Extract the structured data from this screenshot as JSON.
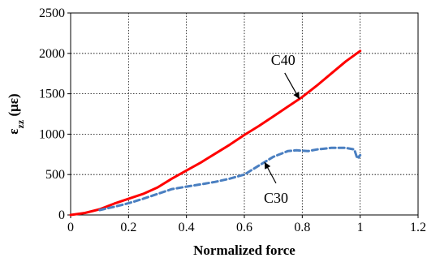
{
  "chart_data": {
    "type": "line",
    "title": "",
    "xlabel": "Normalized force",
    "ylabel_main": "ε",
    "ylabel_sub": "zz",
    "ylabel_unit": " (με)",
    "xlim": [
      0,
      1.2
    ],
    "ylim": [
      0,
      2500
    ],
    "xticks": [
      "0",
      "0.2",
      "0.4",
      "0.6",
      "0.8",
      "1",
      "1.2"
    ],
    "yticks": [
      "0",
      "500",
      "1000",
      "1500",
      "2000",
      "2500"
    ],
    "grid": true,
    "series": [
      {
        "name": "C40",
        "color": "#ff0000",
        "style": "solid",
        "x": [
          0,
          0.05,
          0.1,
          0.15,
          0.2,
          0.25,
          0.3,
          0.35,
          0.4,
          0.45,
          0.5,
          0.55,
          0.6,
          0.65,
          0.7,
          0.75,
          0.8,
          0.85,
          0.9,
          0.95,
          1.0
        ],
        "y": [
          0,
          25,
          70,
          140,
          200,
          260,
          340,
          450,
          550,
          650,
          760,
          870,
          990,
          1100,
          1220,
          1340,
          1460,
          1600,
          1750,
          1900,
          2030
        ]
      },
      {
        "name": "C30",
        "color": "#4a7fc1",
        "style": "dashed",
        "x": [
          0.1,
          0.15,
          0.2,
          0.25,
          0.3,
          0.35,
          0.4,
          0.45,
          0.5,
          0.55,
          0.6,
          0.65,
          0.7,
          0.75,
          0.78,
          0.82,
          0.85,
          0.9,
          0.95,
          0.98,
          0.99,
          1.0,
          0.99
        ],
        "y": [
          60,
          100,
          145,
          200,
          260,
          320,
          350,
          380,
          410,
          450,
          500,
          610,
          720,
          790,
          800,
          790,
          810,
          830,
          830,
          810,
          700,
          740,
          690
        ]
      }
    ],
    "annotations": [
      {
        "label": "C40",
        "series": "C40",
        "at_x": 0.79
      },
      {
        "label": "C30",
        "series": "C30",
        "at_x": 0.67
      }
    ]
  }
}
